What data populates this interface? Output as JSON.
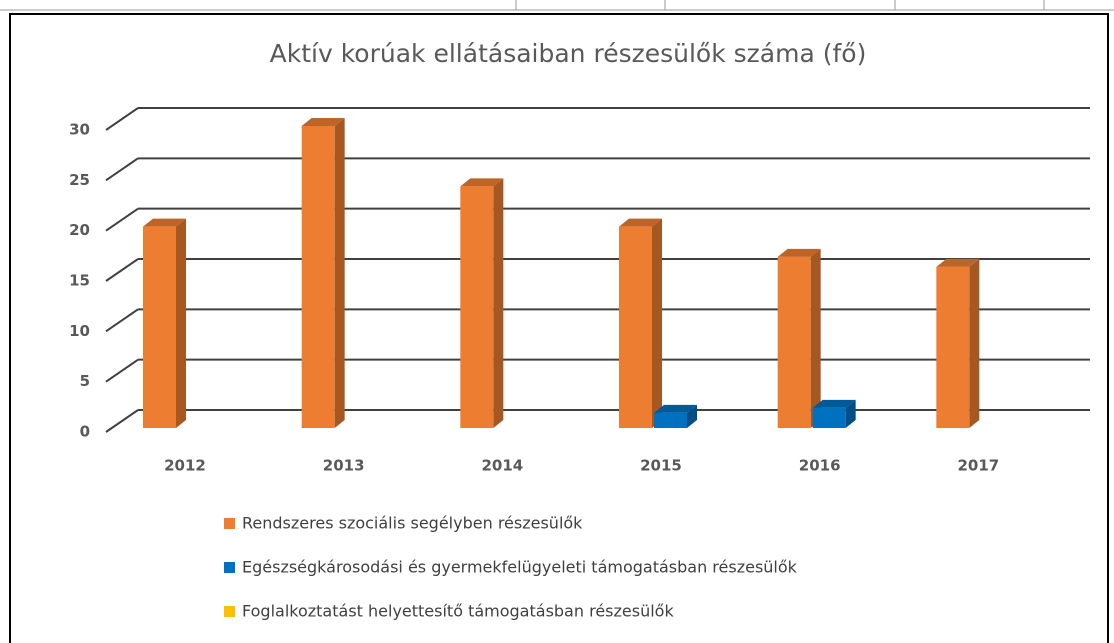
{
  "chart_data": {
    "type": "bar3d",
    "title": "Aktív korúak ellátásaiban részesülők száma (fő)",
    "categories": [
      "2012",
      "2013",
      "2014",
      "2015",
      "2016",
      "2017"
    ],
    "series": [
      {
        "name": "Rendszeres szociális segélyben részesülők",
        "color": "#ed7d31",
        "values": [
          20,
          30,
          24,
          20,
          17,
          16
        ]
      },
      {
        "name": "Egészségkárosodási és gyermekfelügyeleti támogatásban részesülők",
        "color": "#0070c0",
        "values": [
          0,
          0,
          0,
          1.5,
          2,
          0
        ]
      },
      {
        "name": "Foglalkoztatást helyettesítő támogatásban részesülők",
        "color": "#ffc000",
        "values": [
          0,
          0,
          0,
          0,
          0,
          0
        ]
      }
    ],
    "ylim": [
      0,
      30
    ],
    "yticks": [
      0,
      5,
      10,
      15,
      20,
      25,
      30
    ],
    "grid": true
  }
}
